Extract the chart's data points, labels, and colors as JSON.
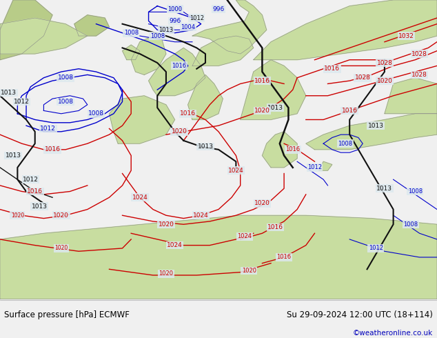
{
  "title_left": "Surface pressure [hPa] ECMWF",
  "title_right": "Su 29-09-2024 12:00 UTC (18+114)",
  "credit": "©weatheronline.co.uk",
  "credit_color": "#0000bb",
  "footer_text_color": "#000000",
  "ocean_color": "#dde8ee",
  "land_color": "#c8dda0",
  "land_dark_color": "#b8cc88",
  "coast_color": "#888888",
  "fig_width": 6.34,
  "fig_height": 4.9,
  "dpi": 100
}
